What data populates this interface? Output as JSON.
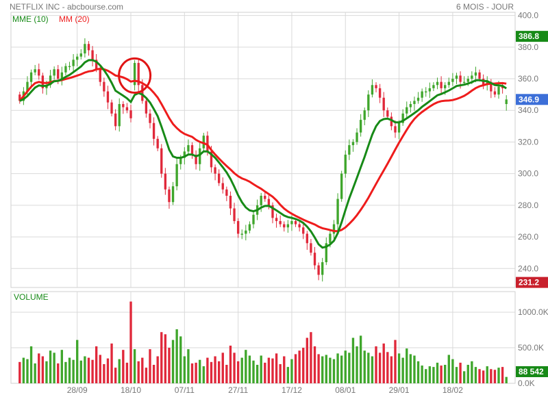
{
  "header": {
    "title": "NETFLIX INC - abcbourse.com",
    "period": "6 MOIS - JOUR"
  },
  "legend": {
    "mme_label": "MME (10)",
    "mm_label": "MM (20)",
    "volume_label": "VOLUME"
  },
  "colors": {
    "up": "#3fa62c",
    "down": "#e0283a",
    "mme": "#178a17",
    "mm": "#ee1c1c",
    "grid": "#d9d9d9",
    "axis_text": "#777777",
    "high_badge": "#178a17",
    "low_badge": "#c8202c",
    "last_badge": "#3c6fd8",
    "volume_badge": "#178a17",
    "highlight_circle": "#e01414"
  },
  "chart_data": {
    "type": "candlestick",
    "title": "NETFLIX INC",
    "period": "6 MOIS - JOUR",
    "price_axis": {
      "range": [
        228,
        402
      ],
      "ticks": [
        "400.0",
        "380.0",
        "360.0",
        "340.0",
        "320.0",
        "300.0",
        "280.0",
        "260.0",
        "240.0"
      ],
      "tick_values": [
        400,
        380,
        360,
        340,
        320,
        300,
        280,
        260,
        240
      ]
    },
    "volume_axis": {
      "range": [
        0,
        1290000
      ],
      "ticks": [
        "1000.0K",
        "500.0K",
        "0.0K"
      ],
      "tick_values": [
        1000000,
        500000,
        0
      ]
    },
    "x_labels": [
      "28/09",
      "18/10",
      "07/11",
      "27/11",
      "17/12",
      "08/01",
      "29/01",
      "18/02"
    ],
    "x_label_index": [
      15,
      29,
      43,
      57,
      71,
      85,
      99,
      113
    ],
    "badges": {
      "high": "386.8",
      "last": "346.9",
      "low": "231.2",
      "volume": "88 542"
    },
    "closes": [
      346,
      352,
      358,
      364,
      366,
      362,
      354,
      356,
      362,
      366,
      360,
      364,
      368,
      368,
      372,
      374,
      376,
      382,
      378,
      372,
      366,
      358,
      352,
      345,
      338,
      330,
      344,
      342,
      340,
      335,
      370,
      356,
      346,
      338,
      332,
      322,
      316,
      300,
      290,
      282,
      292,
      306,
      310,
      314,
      318,
      312,
      306,
      316,
      324,
      314,
      304,
      300,
      294,
      290,
      286,
      278,
      270,
      262,
      262,
      264,
      268,
      274,
      280,
      286,
      284,
      280,
      272,
      270,
      268,
      266,
      268,
      270,
      268,
      266,
      262,
      256,
      250,
      242,
      236,
      244,
      256,
      262,
      268,
      284,
      300,
      312,
      318,
      320,
      326,
      334,
      340,
      350,
      356,
      354,
      348,
      340,
      336,
      330,
      326,
      332,
      338,
      342,
      344,
      346,
      348,
      352,
      352,
      354,
      356,
      358,
      354,
      356,
      358,
      360,
      362,
      358,
      358,
      360,
      362,
      364,
      360,
      356,
      358,
      352,
      350,
      355,
      354,
      346.9
    ],
    "opens": [
      350,
      346,
      352,
      358,
      364,
      366,
      362,
      354,
      356,
      362,
      366,
      360,
      364,
      368,
      368,
      372,
      374,
      376,
      382,
      378,
      372,
      366,
      358,
      352,
      345,
      338,
      330,
      344,
      342,
      340,
      356,
      370,
      356,
      346,
      338,
      332,
      322,
      316,
      300,
      290,
      282,
      292,
      306,
      310,
      314,
      318,
      312,
      306,
      316,
      324,
      314,
      304,
      300,
      294,
      290,
      286,
      278,
      270,
      262,
      262,
      264,
      268,
      274,
      280,
      286,
      284,
      280,
      272,
      270,
      268,
      266,
      268,
      270,
      268,
      266,
      262,
      256,
      250,
      242,
      236,
      244,
      256,
      262,
      268,
      284,
      300,
      312,
      318,
      320,
      326,
      334,
      340,
      350,
      356,
      354,
      348,
      340,
      336,
      330,
      326,
      332,
      338,
      342,
      344,
      346,
      348,
      352,
      352,
      354,
      356,
      358,
      354,
      356,
      358,
      360,
      362,
      358,
      358,
      360,
      362,
      364,
      360,
      356,
      358,
      352,
      350,
      355,
      344
    ],
    "volumes": [
      300,
      360,
      340,
      520,
      280,
      420,
      380,
      310,
      460,
      430,
      280,
      470,
      300,
      360,
      330,
      610,
      320,
      380,
      360,
      330,
      520,
      400,
      270,
      350,
      560,
      220,
      340,
      470,
      290,
      1150,
      480,
      310,
      360,
      220,
      480,
      260,
      380,
      720,
      690,
      500,
      610,
      760,
      660,
      380,
      480,
      280,
      290,
      330,
      240,
      360,
      300,
      380,
      310,
      430,
      260,
      530,
      430,
      310,
      360,
      470,
      390,
      320,
      260,
      390,
      290,
      360,
      350,
      420,
      270,
      380,
      230,
      340,
      410,
      460,
      500,
      640,
      720,
      520,
      410,
      380,
      400,
      360,
      340,
      420,
      390,
      460,
      430,
      640,
      520,
      670,
      460,
      430,
      380,
      520,
      430,
      560,
      440,
      380,
      610,
      420,
      360,
      490,
      410,
      390,
      310,
      250,
      200,
      240,
      230,
      290,
      250,
      260,
      400,
      340,
      230,
      290,
      170,
      260,
      310,
      230,
      200,
      180,
      240,
      200,
      190,
      220,
      230,
      90
    ]
  }
}
